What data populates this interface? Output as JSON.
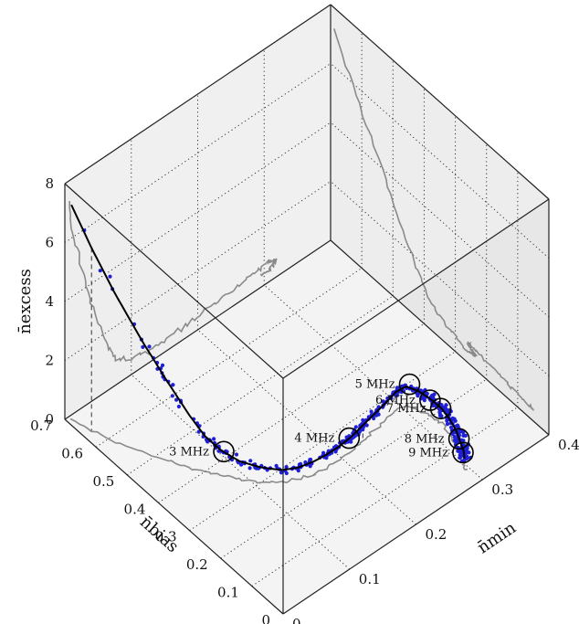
{
  "chart_data": {
    "type": "scatter",
    "projection": "3d-box",
    "axes": {
      "x": {
        "label": "n̄min",
        "range": [
          0,
          0.4
        ],
        "ticks": [
          "0",
          "0.1",
          "0.2",
          "0.3",
          "0.4"
        ]
      },
      "y": {
        "label": "n̄bias",
        "range": [
          0,
          0.7
        ],
        "ticks": [
          "0",
          "0.1",
          "0.2",
          "0.3",
          "0.4",
          "0.5",
          "0.6",
          "0.7"
        ]
      },
      "z": {
        "label": "n̄excess",
        "range": [
          0,
          8
        ],
        "ticks": [
          "0",
          "2",
          "4",
          "6",
          "8"
        ]
      }
    },
    "grid": true,
    "colors": {
      "points": "#1f1fd6",
      "fit_line": "#000000",
      "shadow": "#8a8a8a",
      "box_wall": "#eeeeee",
      "floor": "#f4f4f4"
    },
    "fit_curve": [
      [
        0.005,
        0.69,
        7.3
      ],
      [
        0.012,
        0.64,
        6.2
      ],
      [
        0.022,
        0.585,
        5.0
      ],
      [
        0.035,
        0.525,
        3.75
      ],
      [
        0.048,
        0.475,
        2.7
      ],
      [
        0.06,
        0.43,
        1.8
      ],
      [
        0.07,
        0.4,
        1.2
      ],
      [
        0.08,
        0.37,
        0.85
      ],
      [
        0.092,
        0.335,
        0.62
      ],
      [
        0.108,
        0.3,
        0.5
      ],
      [
        0.125,
        0.272,
        0.42
      ],
      [
        0.142,
        0.255,
        0.4
      ],
      [
        0.16,
        0.245,
        0.42
      ],
      [
        0.178,
        0.24,
        0.44
      ],
      [
        0.196,
        0.238,
        0.46
      ],
      [
        0.215,
        0.24,
        0.48
      ],
      [
        0.235,
        0.245,
        0.52
      ],
      [
        0.255,
        0.25,
        0.56
      ],
      [
        0.275,
        0.255,
        0.6
      ],
      [
        0.292,
        0.26,
        0.65
      ],
      [
        0.305,
        0.255,
        0.68
      ],
      [
        0.312,
        0.23,
        0.65
      ],
      [
        0.316,
        0.2,
        0.6
      ],
      [
        0.318,
        0.17,
        0.55
      ],
      [
        0.316,
        0.14,
        0.5
      ],
      [
        0.312,
        0.11,
        0.45
      ],
      [
        0.306,
        0.085,
        0.42
      ],
      [
        0.3,
        0.06,
        0.4
      ],
      [
        0.294,
        0.045,
        0.38
      ]
    ],
    "frequency_markers": [
      {
        "label": "3 MHz",
        "x": 0.082,
        "y": 0.365,
        "z": 0.82
      },
      {
        "label": "4 MHz",
        "x": 0.212,
        "y": 0.24,
        "z": 0.48
      },
      {
        "label": "5 MHz",
        "x": 0.31,
        "y": 0.255,
        "z": 0.68
      },
      {
        "label": "6 MHz",
        "x": 0.315,
        "y": 0.2,
        "z": 0.58
      },
      {
        "label": "7 MHz",
        "x": 0.317,
        "y": 0.17,
        "z": 0.55
      },
      {
        "label": "8 MHz",
        "x": 0.307,
        "y": 0.09,
        "z": 0.43
      },
      {
        "label": "9 MHz",
        "x": 0.298,
        "y": 0.058,
        "z": 0.4
      }
    ],
    "point_count": 420
  }
}
